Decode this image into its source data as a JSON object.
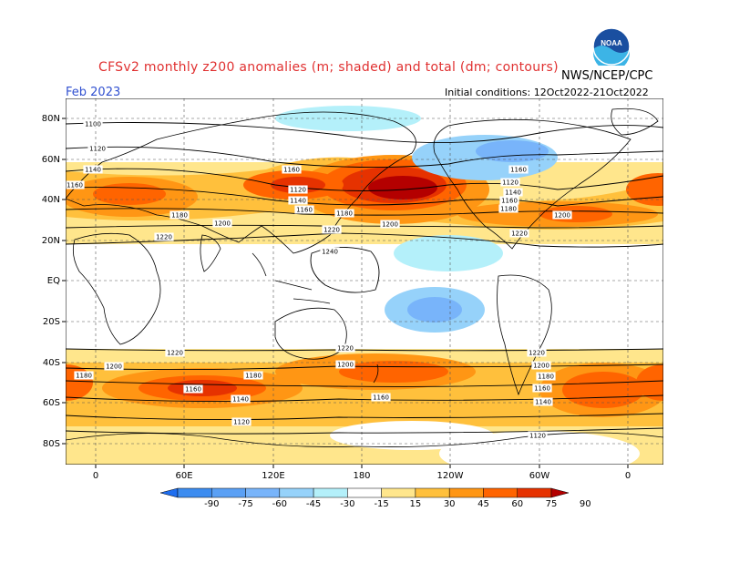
{
  "header": {
    "title": "CFSv2 monthly z200 anomalies (m; shaded) and total (dm; contours)",
    "month": "Feb 2023",
    "initial_conditions": "Initial conditions: 12Oct2022-21Oct2022",
    "agency": "NWS/NCEP/CPC",
    "logo_text": "NOAA"
  },
  "axes": {
    "lat_labels": [
      "80N",
      "60N",
      "40N",
      "20N",
      "EQ",
      "20S",
      "40S",
      "60S",
      "80S"
    ],
    "lon_labels": [
      "0",
      "60E",
      "120E",
      "180",
      "120W",
      "60W",
      "0"
    ]
  },
  "colorbar": {
    "ticks": [
      "-90",
      "-75",
      "-60",
      "-45",
      "-30",
      "-15",
      "15",
      "30",
      "45",
      "60",
      "75",
      "90"
    ],
    "colors": [
      "#1e6ef0",
      "#3c8cf0",
      "#5aa0f5",
      "#78b4fa",
      "#96d2fa",
      "#b4f0fa",
      "#ffffff",
      "#ffe68c",
      "#ffc03c",
      "#ff9614",
      "#ff6400",
      "#e63200",
      "#b40000"
    ]
  },
  "contours": {
    "labels": [
      "1100",
      "1120",
      "1140",
      "1160",
      "1180",
      "1200",
      "1220",
      "1240"
    ]
  }
}
